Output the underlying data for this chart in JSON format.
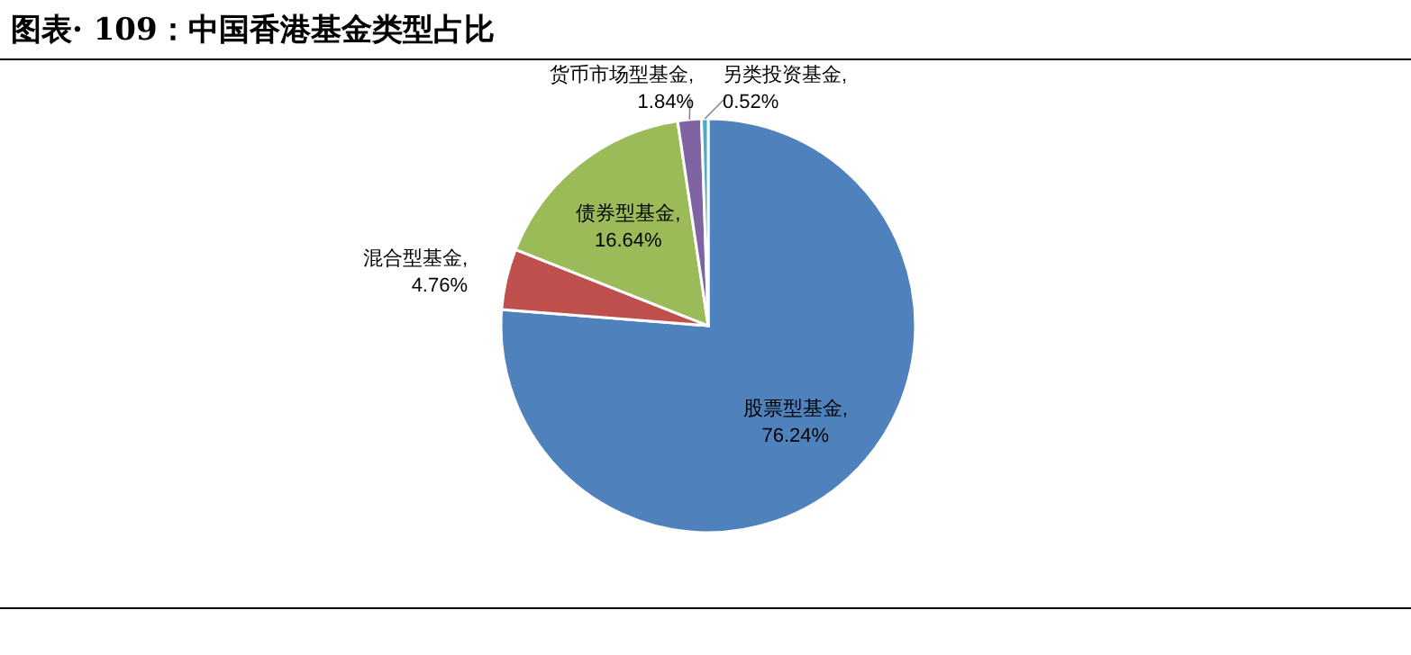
{
  "chart_data": {
    "type": "pie",
    "title": "图表· 109：中国香港基金类型占比",
    "categories": [
      "股票型基金",
      "混合型基金",
      "债券型基金",
      "货币市场型基金",
      "另类投资基金"
    ],
    "values": [
      76.24,
      4.76,
      16.64,
      1.84,
      0.52
    ],
    "colors": [
      "#4f81bd",
      "#c0504d",
      "#9bbb59",
      "#8064a2",
      "#4bacc6"
    ],
    "value_labels": [
      ",\n76.24%",
      ",\n4.76%",
      ",\n16.64%",
      ",\n1.84%",
      ",\n0.52%"
    ]
  }
}
